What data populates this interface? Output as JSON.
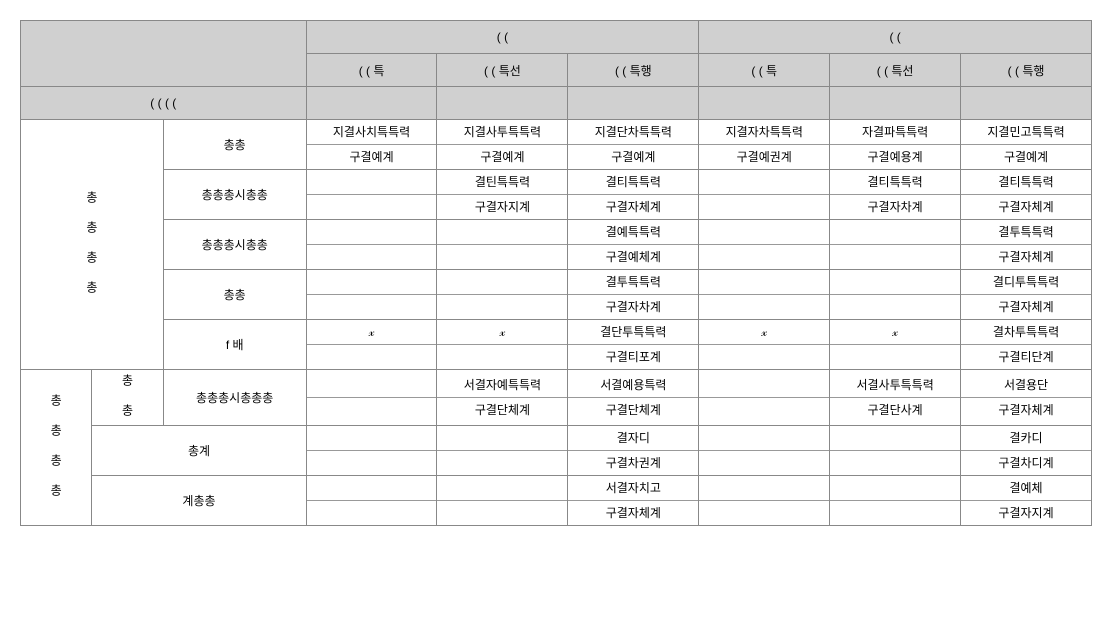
{
  "header": {
    "group1": "( (",
    "group2": "( (",
    "sub_a": "( ( 특",
    "sub_b": "( ( 특선",
    "sub_c": "( ( 특행",
    "row_category": "( ( ( (",
    "table_bg": "#d0d0d0",
    "border_color": "#888888"
  },
  "section1": {
    "lead": "총 총 총 총",
    "rows": [
      {
        "label": "총총",
        "g1": {
          "a_top": "지결사치특특력",
          "a_bot": "구결예계",
          "b_top": "지결사투특특력",
          "b_bot": "구결예계",
          "c_top": "지결단차특특력",
          "c_bot": "구결예계"
        },
        "g2": {
          "a_top": "지결자차특특력",
          "a_bot": "구결예권계",
          "b_top": "자결파특특력",
          "b_bot": "구결예용계",
          "c_top": "지결민고특특력",
          "c_bot": "구결예계"
        }
      },
      {
        "label": "총총총시총총",
        "g1": {
          "a_top": "",
          "a_bot": "",
          "b_top": "결틴특특력",
          "b_bot": "구결자지계",
          "c_top": "결티특특력",
          "c_bot": "구결자체계"
        },
        "g2": {
          "a_top": "",
          "a_bot": "",
          "b_top": "결티특특력",
          "b_bot": "구결자차계",
          "c_top": "결티특특력",
          "c_bot": "구결자체계"
        }
      },
      {
        "label": "총총총시총총",
        "g1": {
          "a_top": "",
          "a_bot": "",
          "b_top": "",
          "b_bot": "",
          "c_top": "결예특특력",
          "c_bot": "구결예체계"
        },
        "g2": {
          "a_top": "",
          "a_bot": "",
          "b_top": "",
          "b_bot": "",
          "c_top": "결투특특력",
          "c_bot": "구결자체계"
        }
      },
      {
        "label": "총총",
        "g1": {
          "a_top": "",
          "a_bot": "",
          "b_top": "",
          "b_bot": "",
          "c_top": "결투특특력",
          "c_bot": "구결자차계"
        },
        "g2": {
          "a_top": "",
          "a_bot": "",
          "b_top": "",
          "b_bot": "",
          "c_top": "결디투특특력",
          "c_bot": "구결자체계"
        }
      },
      {
        "label": "f 배",
        "g1": {
          "a_top": "𝓍",
          "a_bot": "",
          "b_top": "𝓍",
          "b_bot": "",
          "c_top": "결단투특특력",
          "c_bot": "구결티포계"
        },
        "g2": {
          "a_top": "𝓍",
          "a_bot": "",
          "b_top": "𝓍",
          "b_bot": "",
          "c_top": "결차투특특력",
          "c_bot": "구결티단계"
        }
      }
    ]
  },
  "section2": {
    "lead": "총 총 총 총",
    "sublead": "총 총",
    "rows": [
      {
        "label": "총총총시총총총",
        "g1": {
          "a_top": "",
          "a_bot": "",
          "b_top": "서결자예특특력",
          "b_bot": "구결단체계",
          "c_top": "서결예용특력",
          "c_bot": "구결단체계"
        },
        "g2": {
          "a_top": "",
          "a_bot": "",
          "b_top": "서결사투특특력",
          "b_bot": "구결단사계",
          "c_top": "서결용단",
          "c_bot": "구결자체계"
        }
      },
      {
        "label": "총계",
        "g1": {
          "a_top": "",
          "a_bot": "",
          "b_top": "",
          "b_bot": "",
          "c_top": "결자디",
          "c_bot": "구결차권계"
        },
        "g2": {
          "a_top": "",
          "a_bot": "",
          "b_top": "",
          "b_bot": "",
          "c_top": "결카디",
          "c_bot": "구결차디계"
        }
      },
      {
        "label": "계총총",
        "g1": {
          "a_top": "",
          "a_bot": "",
          "b_top": "",
          "b_bot": "",
          "c_top": "서결자치고",
          "c_bot": "구결자체계"
        },
        "g2": {
          "a_top": "",
          "a_bot": "",
          "b_top": "",
          "b_bot": "",
          "c_top": "결예체",
          "c_bot": "구결자지계"
        }
      }
    ]
  }
}
